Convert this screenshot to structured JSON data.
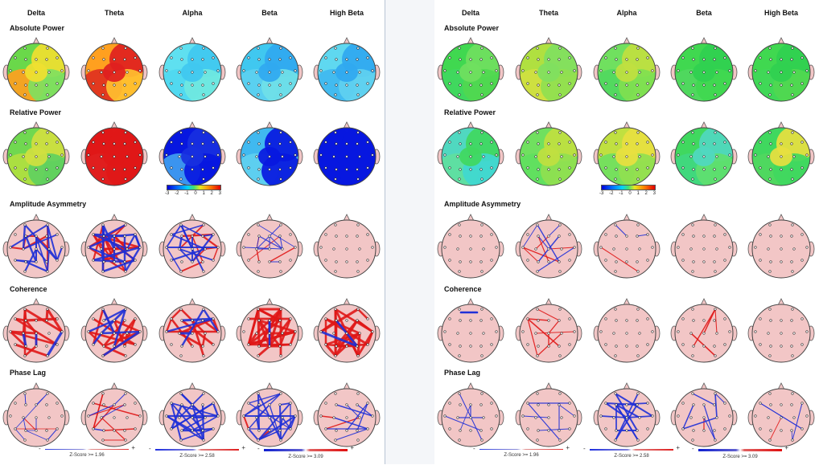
{
  "bands": [
    "Delta",
    "Theta",
    "Alpha",
    "Beta",
    "High Beta"
  ],
  "rows": [
    "Absolute Power",
    "Relative Power",
    "Amplitude Asymmetry",
    "Coherence",
    "Phase Lag"
  ],
  "colorbar_ticks": [
    "-3",
    "-2",
    "-1",
    "0",
    "1",
    "2",
    "3"
  ],
  "legends": [
    {
      "minus": "-",
      "plus": "+",
      "label": "Z-Score >= 1.96"
    },
    {
      "minus": "-",
      "plus": "+",
      "label": "Z-Score >= 2.58"
    },
    {
      "minus": "-",
      "plus": "+",
      "label": "Z-Score >= 3.09"
    }
  ],
  "colors": {
    "scalp_pink": "#f2c6c6",
    "line_red": "#e01818",
    "line_blue": "#2030d8",
    "edge": "#b8c4d4"
  },
  "maps": {
    "left": {
      "absolute": [
        [
          "#6ad84a",
          "#f0e030",
          "#ffa020",
          "#80e060"
        ],
        [
          "#ffa020",
          "#e02020",
          "#e03020",
          "#ffc030"
        ],
        [
          "#60e0f0",
          "#40c8f0",
          "#50d8f0",
          "#70e8e0"
        ],
        [
          "#40c8f0",
          "#30a8f0",
          "#5cd0f0",
          "#70e0e8"
        ],
        [
          "#60d8f0",
          "#30a8f0",
          "#40b8f0",
          "#60d0f0"
        ]
      ],
      "relative": [
        [
          "#70d850",
          "#d0e040",
          "#b0e040",
          "#60d060"
        ],
        [
          "#e01818",
          "#e01818",
          "#e02020",
          "#e01818"
        ],
        [
          "#0818e0",
          "#1830e0",
          "#40a0f0",
          "#0818e0"
        ],
        [
          "#40b8f0",
          "#0818e0",
          "#60d0f0",
          "#0818e0"
        ],
        [
          "#0818e0",
          "#0818e0",
          "#0818e0",
          "#0818e0"
        ]
      ]
    },
    "right": {
      "absolute": [
        [
          "#40d850",
          "#70e060",
          "#40d860",
          "#50d850"
        ],
        [
          "#b0e040",
          "#80e060",
          "#d0e040",
          "#90e050"
        ],
        [
          "#70e060",
          "#c0e040",
          "#50d860",
          "#80e050"
        ],
        [
          "#40d850",
          "#30d050",
          "#50d860",
          "#40d850"
        ],
        [
          "#40d850",
          "#30d050",
          "#40d858",
          "#50d850"
        ]
      ],
      "relative": [
        [
          "#50d8c0",
          "#40d860",
          "#60e0a0",
          "#40d8d0"
        ],
        [
          "#70e060",
          "#c0e040",
          "#60e060",
          "#90e050"
        ],
        [
          "#c0e040",
          "#e8e040",
          "#70e060",
          "#90e050"
        ],
        [
          "#40d860",
          "#50d8c0",
          "#40d880",
          "#60e070"
        ],
        [
          "#40d860",
          "#e8e040",
          "#50d860",
          "#40d860"
        ]
      ]
    }
  },
  "networks": {
    "left": {
      "asym": [
        {
          "r": 6,
          "b": 18,
          "ws": [
            1.6,
            2.4
          ]
        },
        {
          "r": 22,
          "b": 22,
          "ws": [
            2.0,
            2.8
          ]
        },
        {
          "r": 8,
          "b": 16,
          "ws": [
            1.4,
            2.4
          ]
        },
        {
          "r": 4,
          "b": 10,
          "ws": [
            0.8,
            1.4
          ]
        },
        {
          "r": 0,
          "b": 0,
          "ws": [
            1,
            1
          ]
        }
      ],
      "coh": [
        {
          "r": 16,
          "b": 3,
          "ws": [
            2.4,
            3.2
          ]
        },
        {
          "r": 14,
          "b": 8,
          "ws": [
            2.2,
            3.0
          ]
        },
        {
          "r": 12,
          "b": 5,
          "ws": [
            2.2,
            3.0
          ]
        },
        {
          "r": 30,
          "b": 2,
          "ws": [
            2.4,
            3.2
          ]
        },
        {
          "r": 28,
          "b": 2,
          "ws": [
            2.4,
            3.2
          ]
        }
      ],
      "phase": [
        {
          "r": 2,
          "b": 10,
          "ws": [
            0.7,
            1.2
          ]
        },
        {
          "r": 8,
          "b": 4,
          "ws": [
            0.9,
            1.6
          ]
        },
        {
          "r": 0,
          "b": 24,
          "ws": [
            1.6,
            2.6
          ]
        },
        {
          "r": 2,
          "b": 24,
          "ws": [
            1.2,
            2.2
          ]
        },
        {
          "r": 2,
          "b": 8,
          "ws": [
            1.0,
            1.6
          ]
        }
      ]
    },
    "right": {
      "asym": [
        {
          "r": 0,
          "b": 0,
          "ws": [
            1,
            1
          ]
        },
        {
          "r": 5,
          "b": 6,
          "ws": [
            0.9,
            1.4
          ]
        },
        {
          "r": 1,
          "b": 2,
          "ws": [
            0.8,
            1.2
          ]
        },
        {
          "r": 0,
          "b": 0,
          "ws": [
            1,
            1
          ]
        },
        {
          "r": 0,
          "b": 0,
          "ws": [
            1,
            1
          ]
        }
      ],
      "coh": [
        {
          "r": 0,
          "b": 1,
          "ws": [
            2.4,
            2.6
          ]
        },
        {
          "r": 8,
          "b": 0,
          "ws": [
            1.0,
            1.6
          ]
        },
        {
          "r": 0,
          "b": 0,
          "ws": [
            1,
            1
          ]
        },
        {
          "r": 4,
          "b": 0,
          "ws": [
            1.0,
            1.6
          ]
        },
        {
          "r": 0,
          "b": 0,
          "ws": [
            1,
            1
          ]
        }
      ],
      "phase": [
        {
          "r": 0,
          "b": 6,
          "ws": [
            0.8,
            1.2
          ]
        },
        {
          "r": 0,
          "b": 6,
          "ws": [
            0.8,
            1.2
          ]
        },
        {
          "r": 0,
          "b": 14,
          "ws": [
            1.4,
            2.2
          ]
        },
        {
          "r": 1,
          "b": 7,
          "ws": [
            1.0,
            1.8
          ]
        },
        {
          "r": 1,
          "b": 4,
          "ws": [
            0.8,
            1.2
          ]
        }
      ]
    }
  }
}
